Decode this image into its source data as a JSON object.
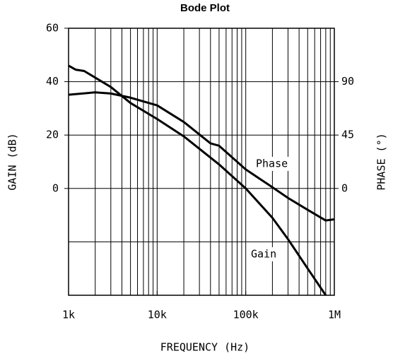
{
  "chart_data": {
    "type": "line",
    "title": "Bode Plot",
    "xlabel": "FREQUENCY (Hz)",
    "ylabel": "GAIN (dB)",
    "y2label": "PHASE (°)",
    "xscale": "log",
    "xlim": [
      1000,
      1000000
    ],
    "xticks": [
      {
        "value": 1000,
        "label": "1k"
      },
      {
        "value": 10000,
        "label": "10k"
      },
      {
        "value": 100000,
        "label": "100k"
      },
      {
        "value": 1000000,
        "label": "1M"
      }
    ],
    "xgrid": [
      2000,
      3000,
      4000,
      5000,
      6000,
      7000,
      8000,
      9000,
      10000,
      20000,
      30000,
      40000,
      50000,
      60000,
      70000,
      80000,
      90000,
      100000,
      200000,
      300000,
      400000,
      500000,
      600000,
      700000,
      800000,
      900000
    ],
    "ylim": [
      -40,
      60
    ],
    "yticks": [
      0,
      20,
      40,
      60
    ],
    "ygrid": [
      -20,
      0,
      20,
      40
    ],
    "y2lim": [
      -90,
      135
    ],
    "y2ticks": [
      0,
      45,
      90
    ],
    "grid": true,
    "color": "#000000",
    "series": [
      {
        "name": "Gain",
        "color": "#000000",
        "x": [
          1000,
          1200,
          1500,
          2000,
          3000,
          5000,
          10000,
          20000,
          50000,
          100000,
          200000,
          300000,
          500000,
          800000
        ],
        "values": [
          46,
          44.5,
          44,
          41.5,
          38,
          32,
          26,
          19.5,
          9,
          0,
          -11,
          -19,
          -30,
          -40
        ]
      },
      {
        "name": "Phase",
        "color": "#000000",
        "axis": "y2",
        "x": [
          1000,
          2000,
          3000,
          5000,
          10000,
          20000,
          40000,
          50000,
          100000,
          200000,
          300000,
          500000,
          800000,
          1000000
        ],
        "values": [
          79,
          81,
          80,
          76.5,
          70,
          56,
          38,
          36,
          16,
          1,
          -8,
          -18,
          -27,
          -26
        ]
      }
    ]
  }
}
